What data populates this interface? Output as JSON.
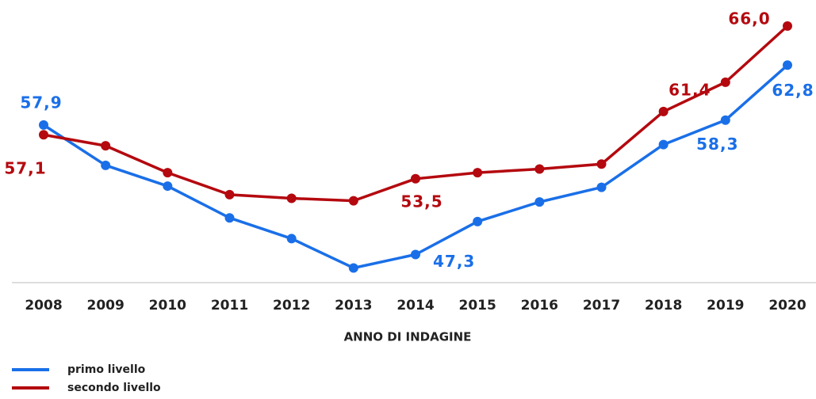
{
  "chart_data": {
    "type": "line",
    "x_label": "ANNO DI INDAGINE",
    "categories": [
      "2008",
      "2009",
      "2010",
      "2011",
      "2012",
      "2013",
      "2014",
      "2015",
      "2016",
      "2017",
      "2018",
      "2019",
      "2020"
    ],
    "ylim": [
      45,
      68
    ],
    "series": [
      {
        "name": "primo livello",
        "color": "#1a6fe8",
        "values": [
          57.9,
          54.6,
          52.9,
          50.3,
          48.6,
          46.2,
          47.3,
          50.0,
          51.6,
          52.8,
          56.3,
          58.3,
          62.8
        ],
        "value_labels": [
          "57,9",
          null,
          null,
          null,
          null,
          null,
          "47,3",
          null,
          null,
          null,
          null,
          "58,3",
          "62,8"
        ]
      },
      {
        "name": "secondo livello",
        "color": "#b4090f",
        "values": [
          57.1,
          56.2,
          54.0,
          52.2,
          51.9,
          51.7,
          53.5,
          54.0,
          54.3,
          54.7,
          59.0,
          61.4,
          66.0
        ],
        "value_labels": [
          "57,1",
          null,
          null,
          null,
          null,
          null,
          "53,5",
          null,
          null,
          null,
          null,
          "61,4",
          "66,0"
        ]
      }
    ]
  }
}
